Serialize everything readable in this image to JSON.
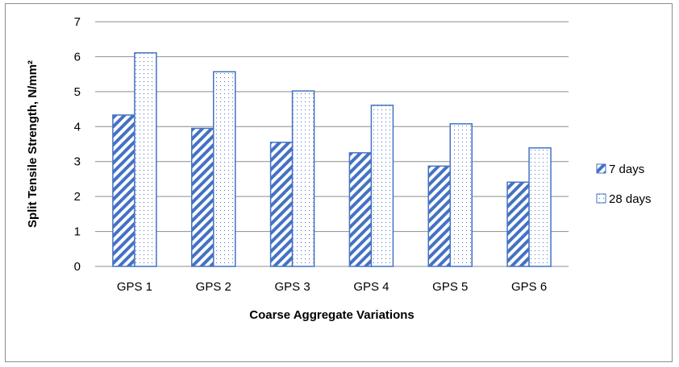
{
  "chart_data": {
    "type": "bar",
    "title": "",
    "xlabel": "Coarse Aggregate Variations",
    "ylabel": "Split Tensile Strength, N/mm²",
    "categories": [
      "GPS 1",
      "GPS 2",
      "GPS 3",
      "GPS 4",
      "GPS 5",
      "GPS 6"
    ],
    "series": [
      {
        "name": "7 days",
        "values": [
          4.33,
          3.95,
          3.55,
          3.25,
          2.87,
          2.41
        ],
        "pattern": "diagonal-stripes",
        "color": "#4472c4"
      },
      {
        "name": "28 days",
        "values": [
          6.11,
          5.57,
          5.02,
          4.61,
          4.08,
          3.39
        ],
        "pattern": "dots",
        "color": "#4472c4"
      }
    ],
    "ylim": [
      0,
      7
    ],
    "yticks": [
      0,
      1,
      2,
      3,
      4,
      5,
      6,
      7
    ],
    "grid": true,
    "legend_position": "right"
  }
}
